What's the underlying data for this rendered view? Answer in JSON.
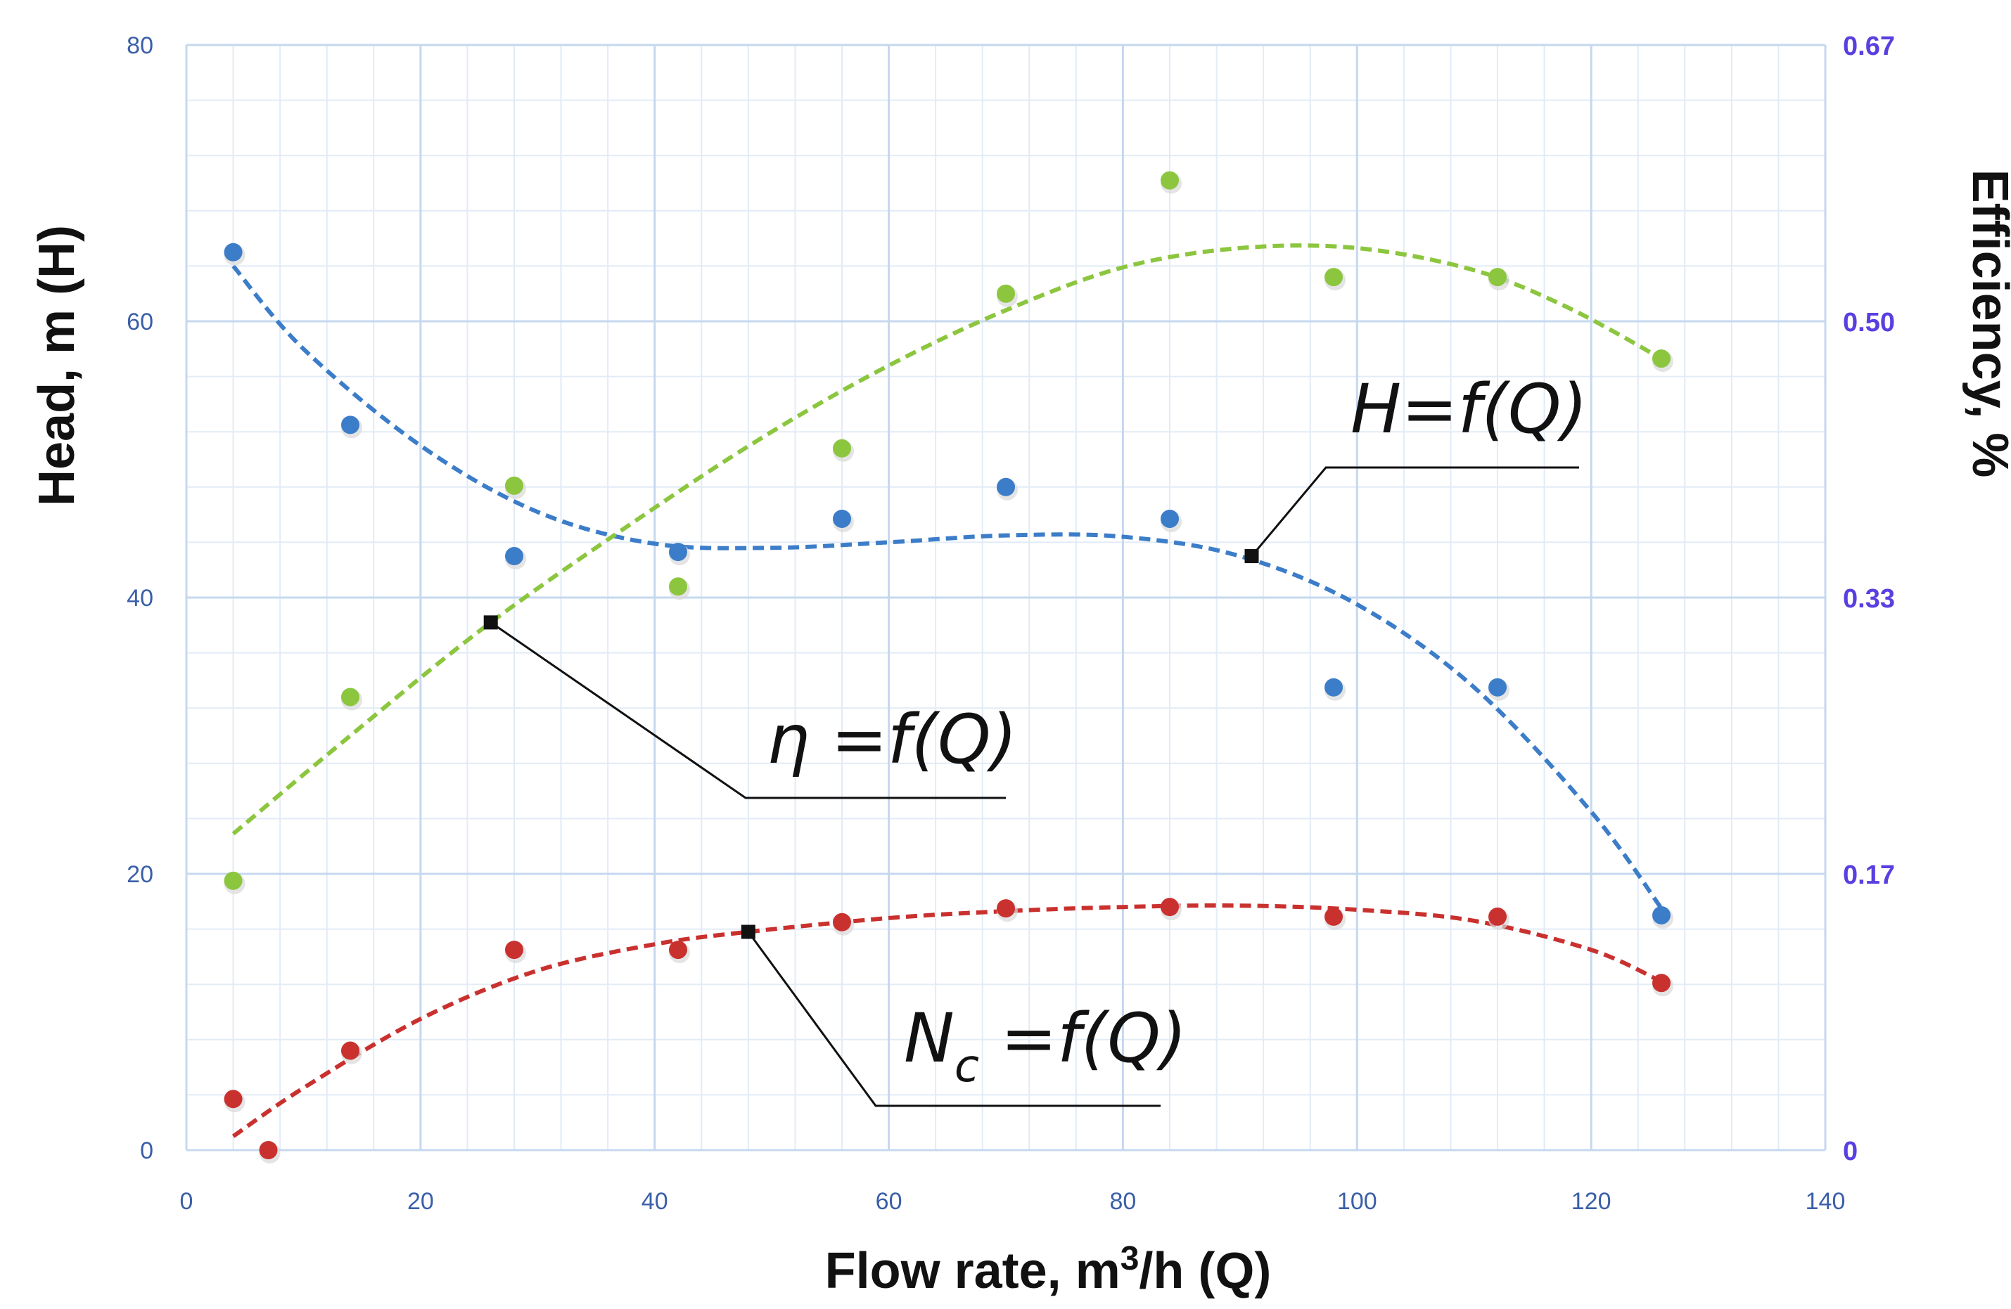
{
  "chart_data": {
    "type": "scatter",
    "title": "",
    "xlabel": "Flow rate, m3/h (Q)",
    "xlabel_parts": {
      "base": "Flow rate, m",
      "sup": "3",
      "rest": "/h (Q)"
    },
    "ylabel": "Head, m (H)",
    "y2label": "Efficiency, %",
    "xlim": [
      0,
      140
    ],
    "ylim": [
      0,
      80
    ],
    "y2lim": [
      0,
      0.67
    ],
    "x_ticks": [
      "0",
      "20",
      "40",
      "60",
      "80",
      "100",
      "120",
      "140"
    ],
    "y_ticks": [
      "0",
      "20",
      "40",
      "60",
      "80"
    ],
    "y2_ticks": [
      "0",
      "0.17",
      "0.33",
      "0.50",
      "0.67"
    ],
    "grid": true,
    "series": [
      {
        "key": "head",
        "color": "#3c7dc9",
        "points": [
          [
            4,
            65
          ],
          [
            14,
            52.5
          ],
          [
            28,
            43
          ],
          [
            42,
            43.3
          ],
          [
            56,
            45.7
          ],
          [
            70,
            48
          ],
          [
            84,
            45.7
          ],
          [
            98,
            33.5
          ],
          [
            112,
            33.5
          ],
          [
            126,
            17
          ]
        ],
        "trend": [
          [
            4,
            64
          ],
          [
            10,
            58
          ],
          [
            20,
            51
          ],
          [
            30,
            46.2
          ],
          [
            40,
            43.9
          ],
          [
            50,
            43.6
          ],
          [
            60,
            44
          ],
          [
            70,
            44.5
          ],
          [
            80,
            44.4
          ],
          [
            90,
            43
          ],
          [
            100,
            39.5
          ],
          [
            110,
            33.5
          ],
          [
            120,
            24.5
          ],
          [
            126,
            17.5
          ]
        ]
      },
      {
        "key": "efficiency",
        "color": "#8cc63f",
        "points": [
          [
            4,
            19.5
          ],
          [
            14,
            32.8
          ],
          [
            28,
            48.1
          ],
          [
            42,
            40.8
          ],
          [
            56,
            50.8
          ],
          [
            70,
            62
          ],
          [
            84,
            70.2
          ],
          [
            98,
            63.2
          ],
          [
            112,
            63.2
          ],
          [
            126,
            57.3
          ]
        ],
        "trend": [
          [
            4,
            22.9
          ],
          [
            14,
            30
          ],
          [
            26,
            38.2
          ],
          [
            40,
            46.5
          ],
          [
            50,
            52
          ],
          [
            60,
            56.8
          ],
          [
            70,
            60.8
          ],
          [
            80,
            63.9
          ],
          [
            90,
            65.3
          ],
          [
            100,
            65.3
          ],
          [
            110,
            63.7
          ],
          [
            118,
            61
          ],
          [
            126,
            57.3
          ]
        ]
      },
      {
        "key": "power",
        "color": "#c9312f",
        "points": [
          [
            4,
            3.7
          ],
          [
            7,
            0
          ],
          [
            14,
            7.2
          ],
          [
            28,
            14.5
          ],
          [
            42,
            14.5
          ],
          [
            56,
            16.5
          ],
          [
            70,
            17.5
          ],
          [
            84,
            17.6
          ],
          [
            98,
            16.9
          ],
          [
            112,
            16.9
          ],
          [
            126,
            12.1
          ]
        ],
        "trend": [
          [
            4,
            1
          ],
          [
            10,
            4.5
          ],
          [
            20,
            9.5
          ],
          [
            30,
            13
          ],
          [
            40,
            14.9
          ],
          [
            48,
            15.8
          ],
          [
            60,
            16.8
          ],
          [
            70,
            17.3
          ],
          [
            80,
            17.6
          ],
          [
            90,
            17.7
          ],
          [
            100,
            17.4
          ],
          [
            110,
            16.6
          ],
          [
            120,
            14.5
          ],
          [
            126,
            12.2
          ]
        ]
      }
    ],
    "annotations": [
      {
        "label": "H=f(Q)",
        "sub": "",
        "anchor": [
          91,
          43
        ]
      },
      {
        "label": "η =f(Q)",
        "sub": "",
        "anchor": [
          26,
          38.2
        ]
      },
      {
        "label": "N",
        "sub": "c",
        "tail": " =f(Q)",
        "anchor": [
          48,
          15.8
        ]
      }
    ]
  }
}
